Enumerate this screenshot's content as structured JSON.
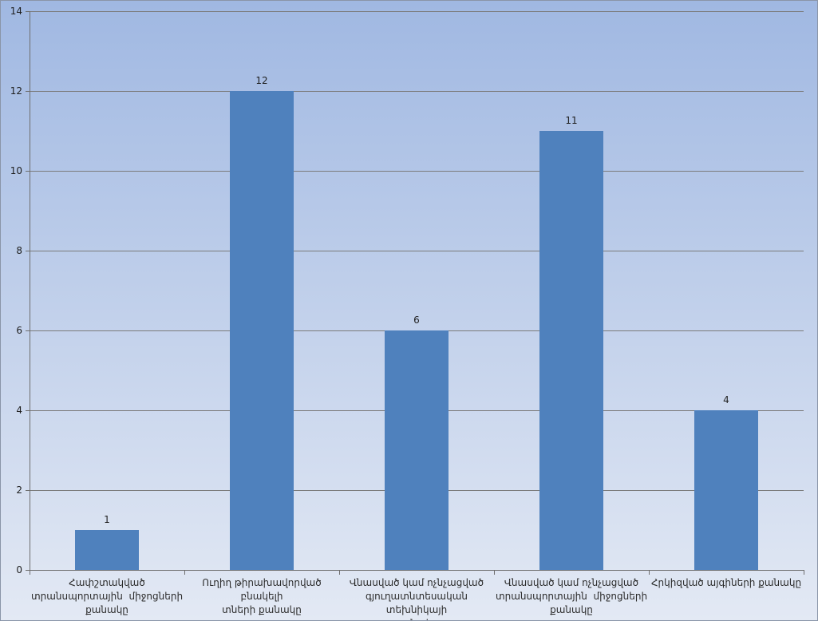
{
  "chart_data": {
    "type": "bar",
    "title": "",
    "xlabel": "",
    "ylabel": "",
    "categories": [
      "Հափշտակված\nտրանսպորտային  միջոցների\nքանակը",
      "Ուղիղ թիրախավորված  բնակելի\nտների քանակը",
      "Վնասված կամ ոչնչացված\nգյուղատնտեսական  տեխնիկայի\nքանակը",
      "Վնասված կամ ոչնչացված\nտրանսպորտային  միջոցների\nքանակը",
      "Հրկիզված այգիների քանակը"
    ],
    "values": [
      1,
      12,
      6,
      11,
      4
    ],
    "value_labels": [
      "1",
      "12",
      "6",
      "11",
      "4"
    ],
    "ylim": [
      0,
      14
    ],
    "yticks": [
      0,
      2,
      4,
      6,
      8,
      10,
      12,
      14
    ],
    "grid": true,
    "legend": false,
    "colors": {
      "bar": "#4F81BD",
      "gridline": "#7B7B7B",
      "axis": "#6E6E6E",
      "value_label": "#1F1F1F",
      "tick_label": "#1F1F1F",
      "category_label": "#2B2B2B",
      "background_top": "#A0B8E2",
      "background_bottom": "#E3E9F4",
      "border": "#8A95A8"
    }
  }
}
